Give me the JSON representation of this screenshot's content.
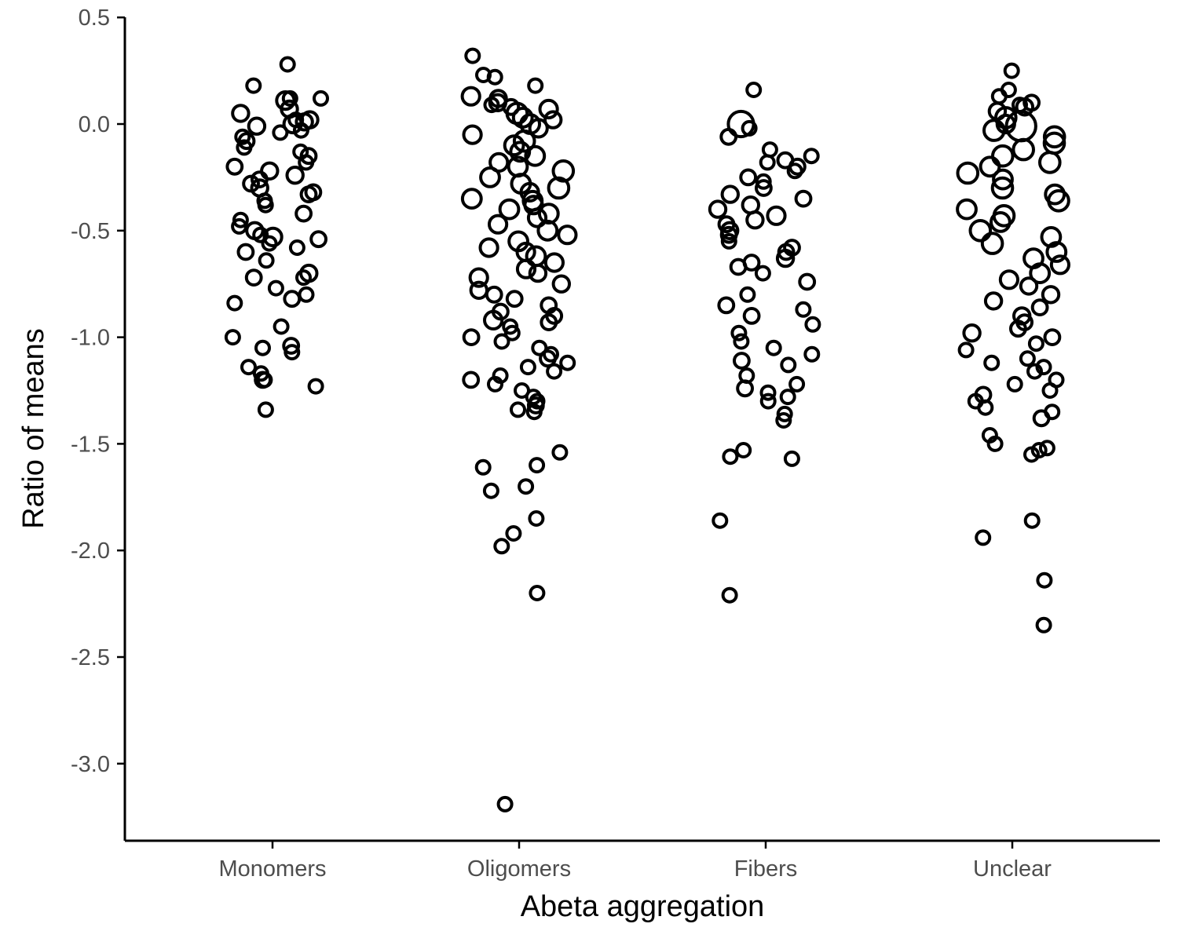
{
  "chart_data": {
    "type": "scatter",
    "title": "",
    "xlabel": "Abeta aggregation",
    "ylabel": "Ratio of means",
    "categories": [
      "Monomers",
      "Oligomers",
      "Fibers",
      "Unclear"
    ],
    "y_ticks": [
      "0.5",
      "0.0",
      "-0.5",
      "-1.0",
      "-1.5",
      "-2.0",
      "-2.5",
      "-3.0"
    ],
    "y_tick_values": [
      0.5,
      0.0,
      -0.5,
      -1.0,
      -1.5,
      -2.0,
      -2.5,
      -3.0
    ],
    "ylim": [
      -3.35,
      0.5
    ],
    "grid": false,
    "legend": "none",
    "jitter": "horizontal jitter within each category; marker size varies per study",
    "point_style": {
      "stroke": "#000000",
      "fill": "none"
    },
    "series": [
      {
        "category": "Monomers",
        "points": [
          [
            0.28,
            1
          ],
          [
            0.18,
            1
          ],
          [
            0.11,
            1.3
          ],
          [
            0.12,
            1
          ],
          [
            0.12,
            1
          ],
          [
            0.07,
            1.2
          ],
          [
            0.05,
            1.2
          ],
          [
            0.02,
            1.2
          ],
          [
            0.0,
            1.3
          ],
          [
            0.01,
            1.2
          ],
          [
            0.02,
            1
          ],
          [
            -0.01,
            1.2
          ],
          [
            -0.03,
            1
          ],
          [
            -0.06,
            1
          ],
          [
            -0.04,
            1
          ],
          [
            -0.08,
            1.1
          ],
          [
            -0.11,
            1
          ],
          [
            -0.13,
            1
          ],
          [
            -0.15,
            1.1
          ],
          [
            -0.18,
            1
          ],
          [
            -0.2,
            1.1
          ],
          [
            -0.22,
            1.2
          ],
          [
            -0.24,
            1.2
          ],
          [
            -0.26,
            1.1
          ],
          [
            -0.28,
            1.1
          ],
          [
            -0.3,
            1.2
          ],
          [
            -0.32,
            1.1
          ],
          [
            -0.33,
            1.1
          ],
          [
            -0.36,
            1
          ],
          [
            -0.38,
            1
          ],
          [
            -0.42,
            1.1
          ],
          [
            -0.45,
            1
          ],
          [
            -0.48,
            1
          ],
          [
            -0.5,
            1.2
          ],
          [
            -0.52,
            1
          ],
          [
            -0.53,
            1.3
          ],
          [
            -0.54,
            1.1
          ],
          [
            -0.56,
            1
          ],
          [
            -0.58,
            1
          ],
          [
            -0.6,
            1.1
          ],
          [
            -0.64,
            1
          ],
          [
            -0.7,
            1.2
          ],
          [
            -0.72,
            1
          ],
          [
            -0.72,
            1.1
          ],
          [
            -0.77,
            1
          ],
          [
            -0.8,
            1
          ],
          [
            -0.82,
            1.1
          ],
          [
            -0.84,
            1
          ],
          [
            -0.95,
            1
          ],
          [
            -1.0,
            1
          ],
          [
            -1.04,
            1.1
          ],
          [
            -1.05,
            1
          ],
          [
            -1.07,
            1
          ],
          [
            -1.14,
            1
          ],
          [
            -1.17,
            1
          ],
          [
            -1.2,
            1.1
          ],
          [
            -1.2,
            1
          ],
          [
            -1.23,
            1
          ],
          [
            -1.34,
            1
          ]
        ]
      },
      {
        "category": "Oligomers",
        "points": [
          [
            0.32,
            1
          ],
          [
            0.22,
            1
          ],
          [
            0.23,
            1
          ],
          [
            0.18,
            1
          ],
          [
            0.13,
            1.3
          ],
          [
            0.12,
            1.2
          ],
          [
            0.1,
            1.2
          ],
          [
            0.08,
            1.1
          ],
          [
            0.09,
            1
          ],
          [
            0.07,
            1.3
          ],
          [
            0.05,
            1.5
          ],
          [
            0.03,
            1.4
          ],
          [
            0.02,
            1.2
          ],
          [
            0.0,
            1.4
          ],
          [
            -0.02,
            1.3
          ],
          [
            -0.05,
            1.3
          ],
          [
            -0.08,
            1.5
          ],
          [
            -0.1,
            1.4
          ],
          [
            -0.13,
            1.4
          ],
          [
            -0.15,
            1.4
          ],
          [
            -0.18,
            1.3
          ],
          [
            -0.2,
            1.4
          ],
          [
            -0.22,
            1.5
          ],
          [
            -0.25,
            1.4
          ],
          [
            -0.28,
            1.4
          ],
          [
            -0.3,
            1.5
          ],
          [
            -0.32,
            1.3
          ],
          [
            -0.35,
            1.4
          ],
          [
            -0.36,
            1.4
          ],
          [
            -0.38,
            1.3
          ],
          [
            -0.4,
            1.4
          ],
          [
            -0.42,
            1.4
          ],
          [
            -0.44,
            1.3
          ],
          [
            -0.47,
            1.3
          ],
          [
            -0.5,
            1.4
          ],
          [
            -0.52,
            1.3
          ],
          [
            -0.55,
            1.4
          ],
          [
            -0.58,
            1.3
          ],
          [
            -0.6,
            1.3
          ],
          [
            -0.62,
            1.4
          ],
          [
            -0.65,
            1.3
          ],
          [
            -0.68,
            1.3
          ],
          [
            -0.7,
            1.2
          ],
          [
            -0.72,
            1.3
          ],
          [
            -0.75,
            1.2
          ],
          [
            -0.78,
            1.2
          ],
          [
            -0.8,
            1.1
          ],
          [
            -0.82,
            1.1
          ],
          [
            -0.85,
            1.1
          ],
          [
            -0.88,
            1.1
          ],
          [
            -0.9,
            1.1
          ],
          [
            -0.92,
            1.3
          ],
          [
            -0.93,
            1.1
          ],
          [
            -0.95,
            1
          ],
          [
            -0.98,
            1
          ],
          [
            -1.0,
            1.1
          ],
          [
            -1.02,
            1
          ],
          [
            -1.05,
            1
          ],
          [
            -1.08,
            1
          ],
          [
            -1.1,
            1.1
          ],
          [
            -1.12,
            1
          ],
          [
            -1.14,
            1
          ],
          [
            -1.16,
            1
          ],
          [
            -1.18,
            1
          ],
          [
            -1.2,
            1.1
          ],
          [
            -1.22,
            1
          ],
          [
            -1.25,
            1
          ],
          [
            -1.28,
            1
          ],
          [
            -1.3,
            1
          ],
          [
            -1.32,
            1.1
          ],
          [
            -1.34,
            1
          ],
          [
            -1.35,
            1
          ],
          [
            -1.54,
            1
          ],
          [
            -1.6,
            1
          ],
          [
            -1.61,
            1
          ],
          [
            -1.7,
            1
          ],
          [
            -1.72,
            1
          ],
          [
            -1.85,
            1
          ],
          [
            -1.92,
            1
          ],
          [
            -1.98,
            1
          ],
          [
            -2.2,
            1
          ],
          [
            -3.19,
            1
          ]
        ]
      },
      {
        "category": "Fibers",
        "points": [
          [
            0.16,
            1
          ],
          [
            0.0,
            1.9
          ],
          [
            -0.02,
            1
          ],
          [
            -0.06,
            1.1
          ],
          [
            -0.12,
            1
          ],
          [
            -0.15,
            1
          ],
          [
            -0.17,
            1.1
          ],
          [
            -0.18,
            1
          ],
          [
            -0.2,
            1.1
          ],
          [
            -0.22,
            1
          ],
          [
            -0.25,
            1.1
          ],
          [
            -0.27,
            1
          ],
          [
            -0.3,
            1.1
          ],
          [
            -0.33,
            1.2
          ],
          [
            -0.35,
            1.1
          ],
          [
            -0.38,
            1.2
          ],
          [
            -0.4,
            1.2
          ],
          [
            -0.43,
            1.3
          ],
          [
            -0.45,
            1.2
          ],
          [
            -0.47,
            1.1
          ],
          [
            -0.5,
            1.2
          ],
          [
            -0.52,
            1.1
          ],
          [
            -0.55,
            1
          ],
          [
            -0.58,
            1.1
          ],
          [
            -0.6,
            1.1
          ],
          [
            -0.63,
            1.2
          ],
          [
            -0.65,
            1.1
          ],
          [
            -0.67,
            1.1
          ],
          [
            -0.7,
            1
          ],
          [
            -0.74,
            1.1
          ],
          [
            -0.8,
            1
          ],
          [
            -0.85,
            1.1
          ],
          [
            -0.87,
            1
          ],
          [
            -0.9,
            1.1
          ],
          [
            -0.94,
            1
          ],
          [
            -0.98,
            1
          ],
          [
            -1.02,
            1
          ],
          [
            -1.05,
            1
          ],
          [
            -1.08,
            1
          ],
          [
            -1.11,
            1.1
          ],
          [
            -1.13,
            1
          ],
          [
            -1.18,
            1
          ],
          [
            -1.22,
            1
          ],
          [
            -1.24,
            1.1
          ],
          [
            -1.26,
            1
          ],
          [
            -1.28,
            1
          ],
          [
            -1.3,
            1
          ],
          [
            -1.36,
            1
          ],
          [
            -1.39,
            1
          ],
          [
            -1.53,
            1
          ],
          [
            -1.56,
            1
          ],
          [
            -1.57,
            1
          ],
          [
            -1.86,
            1
          ],
          [
            -2.21,
            1
          ]
        ]
      },
      {
        "category": "Unclear",
        "points": [
          [
            0.25,
            1
          ],
          [
            0.16,
            1
          ],
          [
            0.13,
            1
          ],
          [
            0.1,
            1.1
          ],
          [
            0.08,
            1.2
          ],
          [
            0.09,
            1
          ],
          [
            0.06,
            1.2
          ],
          [
            0.03,
            1.5
          ],
          [
            0.0,
            1.3
          ],
          [
            -0.01,
            2.2
          ],
          [
            -0.03,
            1.5
          ],
          [
            -0.06,
            1.5
          ],
          [
            -0.09,
            1.5
          ],
          [
            -0.12,
            1.5
          ],
          [
            -0.15,
            1.5
          ],
          [
            -0.18,
            1.5
          ],
          [
            -0.2,
            1.4
          ],
          [
            -0.23,
            1.5
          ],
          [
            -0.26,
            1.4
          ],
          [
            -0.3,
            1.5
          ],
          [
            -0.33,
            1.4
          ],
          [
            -0.36,
            1.5
          ],
          [
            -0.4,
            1.4
          ],
          [
            -0.43,
            1.5
          ],
          [
            -0.46,
            1.4
          ],
          [
            -0.5,
            1.5
          ],
          [
            -0.53,
            1.4
          ],
          [
            -0.56,
            1.5
          ],
          [
            -0.6,
            1.4
          ],
          [
            -0.63,
            1.4
          ],
          [
            -0.66,
            1.3
          ],
          [
            -0.7,
            1.4
          ],
          [
            -0.73,
            1.3
          ],
          [
            -0.76,
            1.2
          ],
          [
            -0.8,
            1.2
          ],
          [
            -0.83,
            1.2
          ],
          [
            -0.86,
            1.1
          ],
          [
            -0.9,
            1.2
          ],
          [
            -0.93,
            1.1
          ],
          [
            -0.96,
            1.1
          ],
          [
            -0.98,
            1.2
          ],
          [
            -1.0,
            1.1
          ],
          [
            -1.03,
            1
          ],
          [
            -1.06,
            1
          ],
          [
            -1.1,
            1
          ],
          [
            -1.12,
            1
          ],
          [
            -1.14,
            1
          ],
          [
            -1.16,
            1
          ],
          [
            -1.2,
            1
          ],
          [
            -1.22,
            1
          ],
          [
            -1.25,
            1
          ],
          [
            -1.27,
            1.1
          ],
          [
            -1.3,
            1
          ],
          [
            -1.33,
            1
          ],
          [
            -1.35,
            1
          ],
          [
            -1.38,
            1.1
          ],
          [
            -1.46,
            1
          ],
          [
            -1.5,
            1
          ],
          [
            -1.52,
            1
          ],
          [
            -1.53,
            1
          ],
          [
            -1.55,
            1
          ],
          [
            -1.86,
            1
          ],
          [
            -1.94,
            1
          ],
          [
            -2.14,
            1
          ],
          [
            -2.35,
            1
          ]
        ]
      }
    ]
  }
}
